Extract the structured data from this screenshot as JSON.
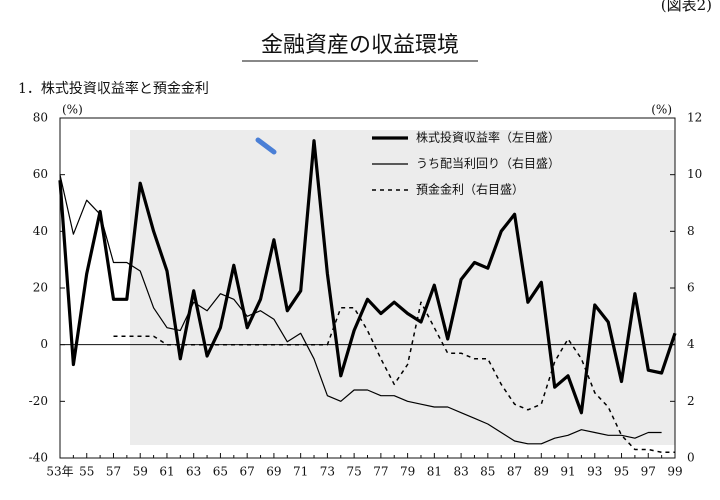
{
  "chart_data": {
    "type": "line",
    "label": "(図表2)",
    "title": "金融資産の収益環境",
    "subtitle": "1．株式投資収益率と預金金利",
    "y_unit": "(%)",
    "y2_unit": "(%)",
    "categories": [
      "53年",
      null,
      "55",
      null,
      "57",
      null,
      "59",
      null,
      "61",
      null,
      "63",
      null,
      "65",
      null,
      "67",
      null,
      "69",
      null,
      "71",
      null,
      "73",
      null,
      "75",
      null,
      "77",
      null,
      "79",
      null,
      "81",
      null,
      "83",
      null,
      "85",
      null,
      "87",
      null,
      "89",
      null,
      "91",
      null,
      "93",
      null,
      "95",
      null,
      "97",
      null,
      "99"
    ],
    "ylim": [
      -40,
      80
    ],
    "yticks": [
      -40,
      -20,
      0,
      20,
      40,
      60,
      80
    ],
    "y2lim": [
      0,
      12
    ],
    "y2ticks": [
      0,
      2,
      4,
      6,
      8,
      10,
      12
    ],
    "zero_line": true,
    "legend": "upper right",
    "series": [
      {
        "name": "株式投資収益率（左目盛）",
        "color": "#000000",
        "style": "thick",
        "values": [
          58,
          -7,
          25,
          47,
          16,
          16,
          57,
          40,
          26,
          -5,
          19,
          -4,
          6,
          28,
          6,
          16,
          37,
          12,
          19,
          72,
          25,
          -11,
          5,
          16,
          11,
          15,
          11,
          8,
          21,
          2,
          23,
          29,
          27,
          40,
          46,
          15,
          22,
          -15,
          -11,
          -24,
          14,
          8,
          -13,
          18,
          -9,
          -10,
          4
        ]
      },
      {
        "name": "うち配当利回り（右目盛）",
        "color": "#000000",
        "style": "thin",
        "axis": "y2",
        "values": [
          10,
          7.9,
          9.1,
          8.6,
          6.9,
          6.9,
          6.6,
          5.3,
          4.6,
          4.5,
          5.5,
          5.2,
          5.8,
          5.6,
          5.0,
          5.2,
          4.9,
          4.1,
          4.4,
          3.5,
          2.2,
          2.0,
          2.4,
          2.4,
          2.2,
          2.2,
          2.0,
          1.9,
          1.8,
          1.8,
          1.6,
          1.4,
          1.2,
          0.9,
          0.6,
          0.5,
          0.5,
          0.7,
          0.8,
          1.0,
          0.9,
          0.8,
          0.8,
          0.7,
          0.9,
          0.9,
          null
        ]
      },
      {
        "name": "預金金利（右目盛）",
        "color": "#000000",
        "style": "dashed",
        "axis": "y2",
        "values": [
          null,
          null,
          null,
          null,
          4.3,
          4.3,
          4.3,
          4.3,
          4.0,
          4.0,
          4.0,
          4.0,
          4.0,
          4.0,
          4.0,
          4.0,
          4.0,
          4.0,
          4.0,
          4.0,
          4.0,
          5.3,
          5.3,
          4.5,
          3.5,
          2.6,
          3.3,
          5.5,
          4.6,
          3.7,
          3.7,
          3.5,
          3.5,
          2.6,
          1.9,
          1.7,
          1.9,
          3.4,
          4.2,
          3.5,
          2.3,
          1.8,
          0.8,
          0.3,
          0.3,
          0.2,
          0.2
        ]
      }
    ]
  }
}
